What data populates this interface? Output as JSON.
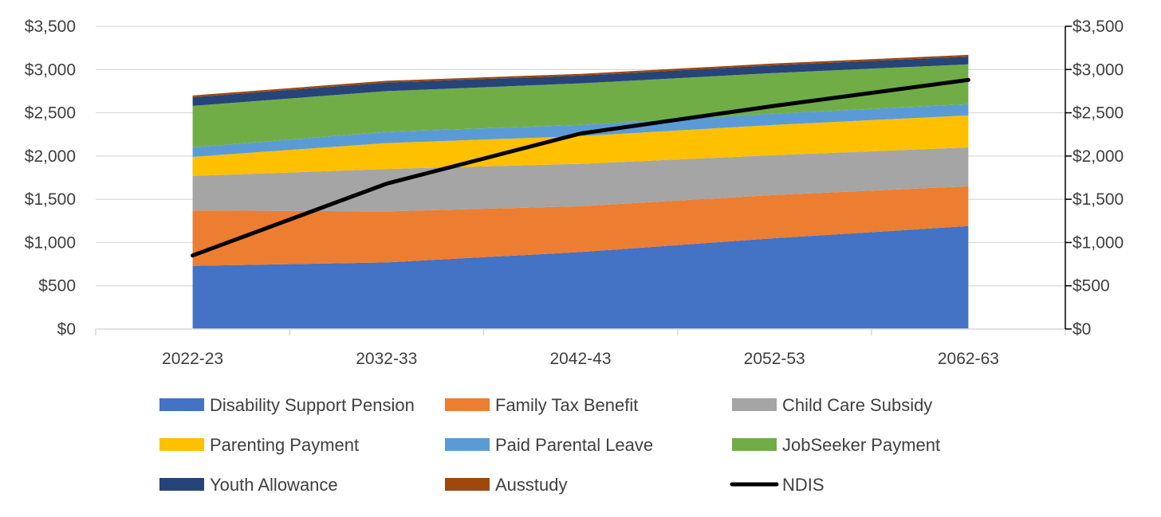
{
  "chart_data": {
    "type": "area",
    "stacked": true,
    "title": "",
    "xlabel": "",
    "ylabel": "",
    "categories": [
      "2022-23",
      "2032-33",
      "2042-43",
      "2052-53",
      "2062-63"
    ],
    "ylim": [
      0,
      3500
    ],
    "yticks": [
      0,
      500,
      1000,
      1500,
      2000,
      2500,
      3000,
      3500
    ],
    "ytick_labels": [
      "$0",
      "$500",
      "$1,000",
      "$1,500",
      "$2,000",
      "$2,500",
      "$3,000",
      "$3,500"
    ],
    "y2lim": [
      0,
      3500
    ],
    "y2tick_labels": [
      "$0",
      "$500",
      "$1,000",
      "$1,500",
      "$2,000",
      "$2,500",
      "$3,000",
      "$3,500"
    ],
    "grid": true,
    "legend_position": "bottom",
    "series": [
      {
        "name": "Disability Support Pension",
        "color": "#4472C4",
        "values": [
          730,
          770,
          890,
          1050,
          1190
        ]
      },
      {
        "name": "Family Tax Benefit",
        "color": "#ED7D31",
        "values": [
          640,
          590,
          530,
          500,
          460
        ]
      },
      {
        "name": "Child Care Subsidy",
        "color": "#A5A5A5",
        "values": [
          400,
          490,
          490,
          460,
          450
        ]
      },
      {
        "name": "Parenting Payment",
        "color": "#FFC000",
        "values": [
          220,
          300,
          320,
          350,
          370
        ]
      },
      {
        "name": "Paid Parental Leave",
        "color": "#5B9BD5",
        "values": [
          110,
          130,
          130,
          130,
          130
        ]
      },
      {
        "name": "JobSeeker Payment",
        "color": "#70AD47",
        "values": [
          480,
          470,
          480,
          470,
          460
        ]
      },
      {
        "name": "Youth Allowance",
        "color": "#264478",
        "values": [
          100,
          100,
          90,
          90,
          90
        ]
      },
      {
        "name": "Ausstudy",
        "color": "#9E480E",
        "values": [
          20,
          20,
          20,
          20,
          20
        ]
      }
    ],
    "line_series": {
      "name": "NDIS",
      "color": "#000000",
      "axis": "secondary",
      "values": [
        850,
        1680,
        2260,
        2580,
        2880
      ]
    }
  }
}
